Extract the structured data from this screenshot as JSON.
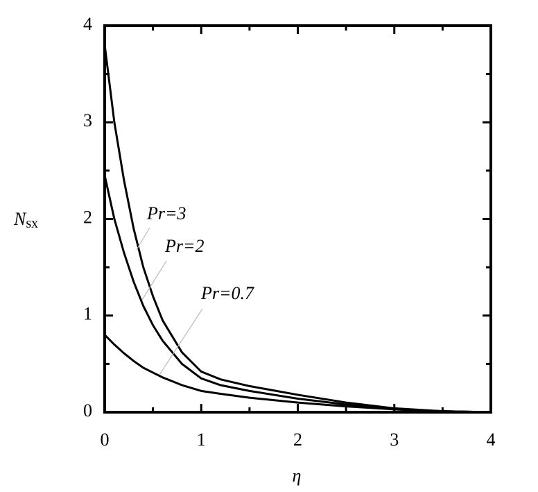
{
  "chart_data": {
    "type": "line",
    "xlabel": "η",
    "ylabel": {
      "main": "N",
      "sub": "sx"
    },
    "x": [
      0,
      0.1,
      0.2,
      0.3,
      0.4,
      0.5,
      0.6,
      0.8,
      1,
      1.2,
      1.5,
      2,
      2.5,
      3,
      3.5,
      4
    ],
    "series": [
      {
        "name": "Pr=3",
        "color": "#000000",
        "values": [
          3.8,
          3.0,
          2.4,
          1.9,
          1.5,
          1.2,
          0.95,
          0.62,
          0.42,
          0.34,
          0.27,
          0.18,
          0.1,
          0.04,
          0.01,
          0
        ]
      },
      {
        "name": "Pr=2",
        "color": "#000000",
        "values": [
          2.45,
          2.0,
          1.65,
          1.35,
          1.1,
          0.9,
          0.74,
          0.5,
          0.35,
          0.28,
          0.22,
          0.14,
          0.08,
          0.03,
          0.01,
          0
        ]
      },
      {
        "name": "Pr=0.7",
        "color": "#000000",
        "values": [
          0.8,
          0.7,
          0.61,
          0.53,
          0.46,
          0.41,
          0.36,
          0.28,
          0.22,
          0.19,
          0.15,
          0.1,
          0.06,
          0.03,
          0.01,
          0
        ]
      }
    ],
    "xlim": [
      0,
      4
    ],
    "ylim": [
      0,
      4
    ],
    "xticks": [
      0,
      1,
      2,
      3,
      4
    ],
    "yticks": [
      0,
      1,
      2,
      3,
      4
    ],
    "xminorticks": [
      0.5,
      1.5,
      2.5,
      3.5
    ],
    "yminorticks": [
      0.5,
      1.5,
      2.5,
      3.5
    ],
    "grid": false
  }
}
